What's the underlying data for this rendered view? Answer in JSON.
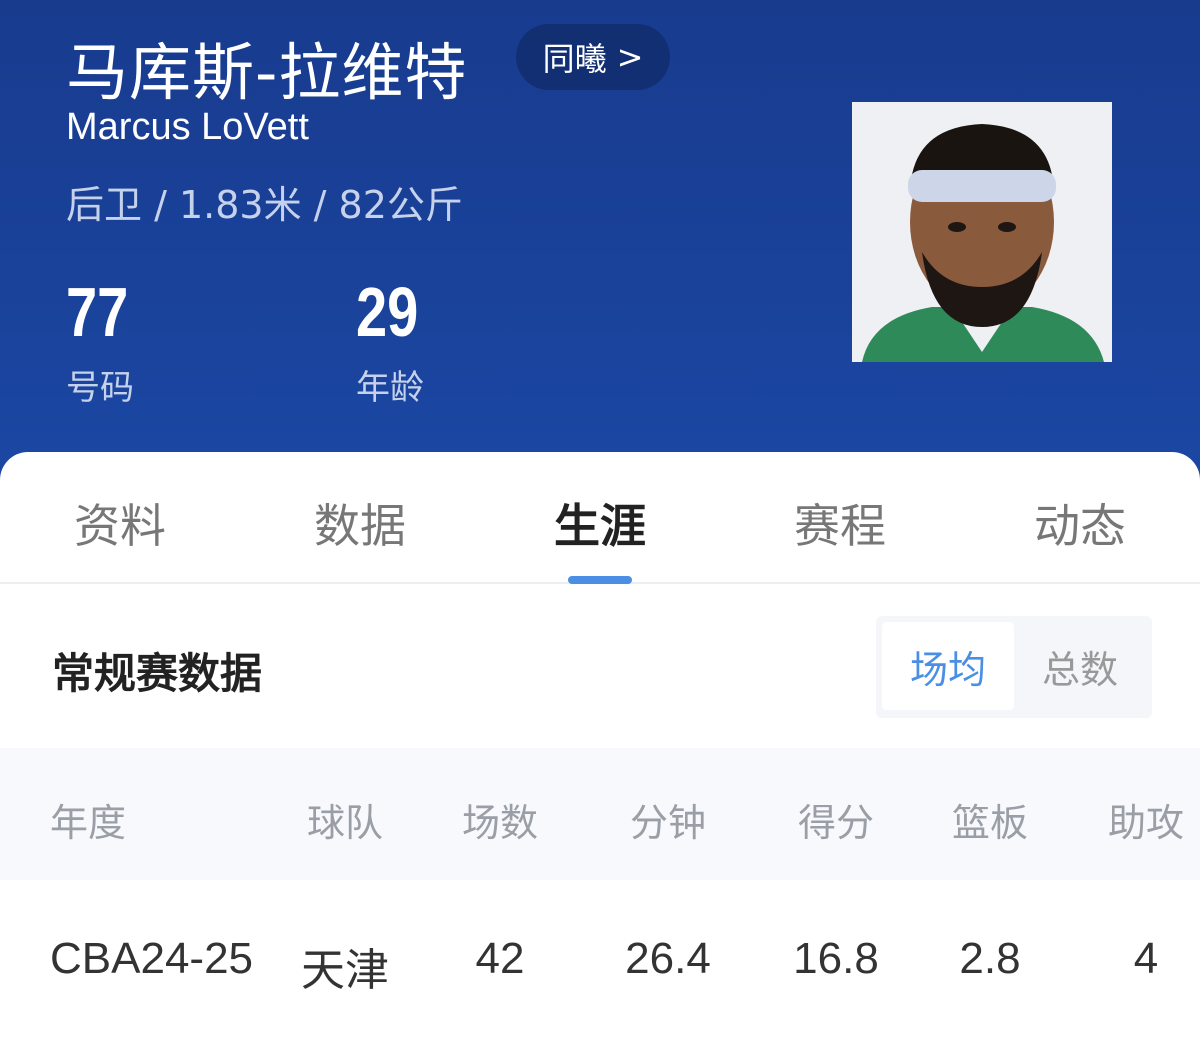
{
  "player": {
    "name_cn": "马库斯-拉维特",
    "name_en": "Marcus LoVett",
    "meta": "后卫 / 1.83米 / 82公斤",
    "peers_label": "同曦",
    "peers_chevron": ">",
    "stats": [
      {
        "value": "77",
        "label": "号码"
      },
      {
        "value": "29",
        "label": "年龄"
      }
    ]
  },
  "tabs": [
    {
      "label": "资料"
    },
    {
      "label": "数据"
    },
    {
      "label": "生涯",
      "active": true
    },
    {
      "label": "赛程"
    },
    {
      "label": "动态"
    }
  ],
  "section": {
    "title": "常规赛数据",
    "toggle": [
      "场均",
      "总数"
    ],
    "selected": "场均"
  },
  "table": {
    "columns": [
      "年度",
      "球队",
      "场数",
      "分钟",
      "得分",
      "篮板",
      "助攻"
    ],
    "rows": [
      [
        "CBA24-25",
        "天津",
        "42",
        "26.4",
        "16.8",
        "2.8",
        "4"
      ]
    ]
  },
  "colors": {
    "header": "#1b47a3",
    "accent": "#4a8fe3"
  }
}
